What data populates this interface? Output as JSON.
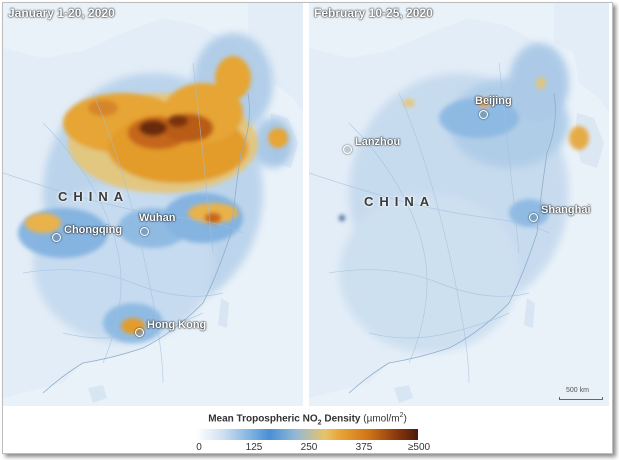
{
  "panels": {
    "left": {
      "date_label": "January 1-20, 2020",
      "country_label": "CHINA",
      "cities": [
        {
          "name": "Wuhan"
        },
        {
          "name": "Chongqing"
        },
        {
          "name": "Hong Kong"
        }
      ]
    },
    "right": {
      "date_label": "February 10-25, 2020",
      "country_label": "CHINA",
      "cities": [
        {
          "name": "Beijing"
        },
        {
          "name": "Lanzhou"
        },
        {
          "name": "Shanghai"
        }
      ],
      "scale_bar": "500 km"
    }
  },
  "legend": {
    "title_prefix": "Mean Tropospheric NO",
    "title_subscript": "2",
    "title_suffix": " Density",
    "unit_open": " (µmol/m",
    "unit_sup": "2",
    "unit_close": ")",
    "ticks": [
      "0",
      "125",
      "250",
      "375",
      "≥500"
    ],
    "colors": {
      "low": "#ffffff",
      "light_blue": "#cfe1f1",
      "blue": "#4a8fd5",
      "yellow": "#e7c36a",
      "orange": "#e6a031",
      "dark_orange": "#cf7318",
      "brown": "#8d3a0d",
      "darkest": "#4a1a0a"
    }
  }
}
